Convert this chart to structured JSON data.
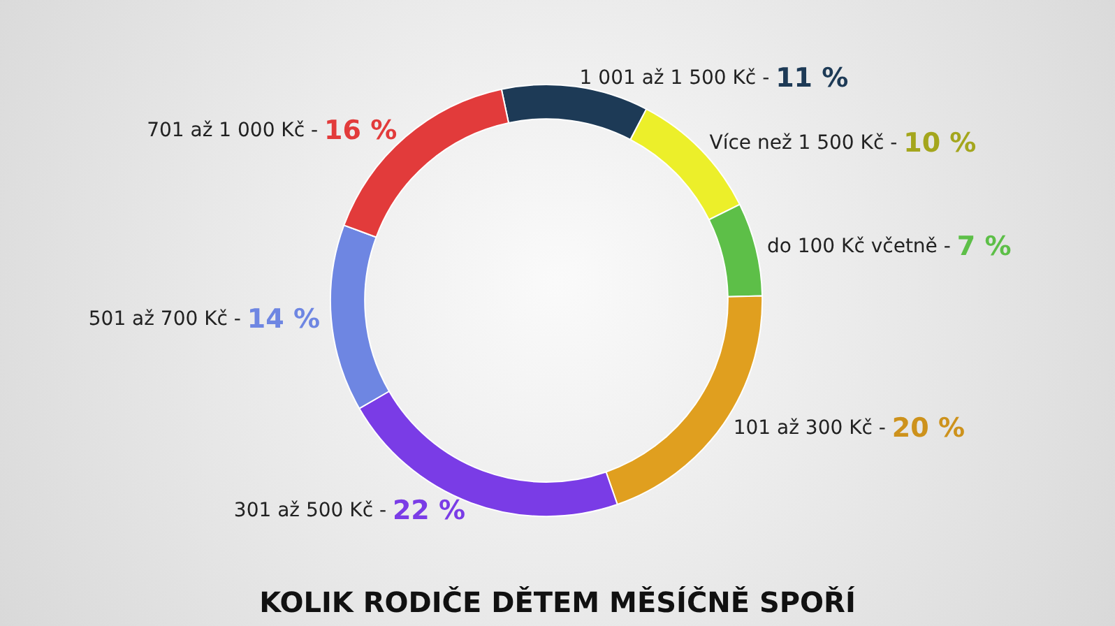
{
  "chart_data": {
    "type": "donut",
    "title": "KOLIK RODIČE DĚTEM MĚSÍČNĚ SPOŘÍ",
    "categories": [
      "1 001 až 1 500 Kč -",
      "Více než 1 500 Kč -",
      "do 100 Kč včetně -",
      "101 až 300 Kč -",
      "301 až 500 Kč -",
      "501 až 700 Kč -",
      "701 až 1 000 Kč -"
    ],
    "values": [
      11,
      10,
      7,
      20,
      22,
      14,
      16
    ],
    "value_labels": [
      "11 %",
      "10 %",
      "7 %",
      "20 %",
      "22 %",
      "14 %",
      "16 %"
    ],
    "colors": [
      "#1d3a56",
      "#ecef2a",
      "#5dbf48",
      "#e09f1f",
      "#7a3ce6",
      "#6e86e2",
      "#e23b3b"
    ],
    "legend": false
  }
}
